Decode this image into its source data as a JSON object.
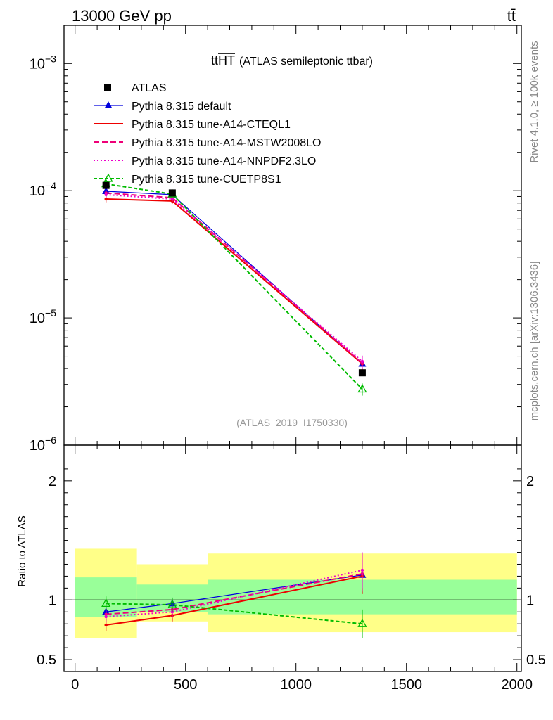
{
  "header": {
    "left": "13000 GeV pp",
    "right": "tt̄"
  },
  "side_labels": {
    "rivet": "Rivet 4.1.0, ≥ 100k events",
    "mcplots": "mcplots.cern.ch [arXiv:1306.3436]"
  },
  "colors": {
    "atlas": "#000000",
    "default": "#0000dd",
    "cteql1": "#ee0000",
    "mstw": "#ee0077",
    "nnpdf": "#ee00cc",
    "cuetp": "#00bb00",
    "band_outer": "#ffff88",
    "band_inner": "#99ff99",
    "ratio_line": "#000000"
  },
  "chart_data": [
    {
      "type": "line",
      "title_main": "tt",
      "title_overline": "HT",
      "title_suffix": "(ATLAS semileptonic ttbar)",
      "watermark": "(ATLAS_2019_I1750330)",
      "xlim": [
        -50,
        2020
      ],
      "ylim_log10": [
        -6,
        -2.7
      ],
      "y_ticks": [
        {
          "base": "10",
          "exp": "−3",
          "log": -3
        },
        {
          "base": "10",
          "exp": "−4",
          "log": -4
        },
        {
          "base": "10",
          "exp": "−5",
          "log": -5
        },
        {
          "base": "10",
          "exp": "−6",
          "log": -6
        }
      ],
      "data": {
        "name": "ATLAS",
        "x": [
          140,
          440,
          1300
        ],
        "y": [
          0.00011,
          9.6e-05,
          3.7e-06
        ]
      },
      "series": [
        {
          "name": "Pythia 8.315 default",
          "key": "default",
          "dash": "",
          "marker": "tri-filled",
          "x": [
            140,
            440,
            1300
          ],
          "y": [
            9.9e-05,
            9.3e-05,
            4.35e-06
          ],
          "err": [
            1e-05,
            6e-06,
            4e-07
          ]
        },
        {
          "name": "Pythia 8.315 tune-A14-CTEQL1",
          "key": "cteql1",
          "dash": "",
          "marker": "dot",
          "x": [
            140,
            440,
            1300
          ],
          "y": [
            8.6e-05,
            8.3e-05,
            4.35e-06
          ],
          "err": [
            5e-06,
            4e-06,
            5e-07
          ]
        },
        {
          "name": "Pythia 8.315 tune-A14-MSTW2008LO",
          "key": "mstw",
          "dash": "8,4",
          "marker": "dot",
          "x": [
            140,
            440,
            1300
          ],
          "y": [
            9.6e-05,
            8.8e-05,
            4.4e-06
          ],
          "err": [
            5e-06,
            4e-06,
            5e-07
          ]
        },
        {
          "name": "Pythia 8.315 tune-A14-NNPDF2.3LO",
          "key": "nnpdf",
          "dash": "2,3",
          "marker": "dot",
          "x": [
            140,
            440,
            1300
          ],
          "y": [
            9.3e-05,
            8.6e-05,
            4.55e-06
          ],
          "err": [
            5e-06,
            4e-06,
            5e-07
          ]
        },
        {
          "name": "Pythia 8.315 tune-CUETP8S1",
          "key": "cuetp",
          "dash": "5,3",
          "marker": "tri-open",
          "x": [
            140,
            440,
            1300
          ],
          "y": [
            0.000113,
            9.4e-05,
            2.75e-06
          ],
          "err": [
            6e-06,
            5e-06,
            3e-07
          ]
        }
      ]
    },
    {
      "type": "line",
      "ylabel": "Ratio to ATLAS",
      "xlim": [
        -50,
        2020
      ],
      "ylim": [
        0.4,
        2.3
      ],
      "y_ticks": [
        {
          "label": "2",
          "value": 2
        },
        {
          "label": "1",
          "value": 1
        },
        {
          "label": "0.5",
          "value": 0.5
        }
      ],
      "x_ticks": [
        {
          "label": "0",
          "value": 0
        },
        {
          "label": "500",
          "value": 500
        },
        {
          "label": "1000",
          "value": 1000
        },
        {
          "label": "1500",
          "value": 1500
        },
        {
          "label": "2000",
          "value": 2000
        }
      ],
      "bins": [
        {
          "lo": 0,
          "hi": 280,
          "inner": [
            0.86,
            1.19
          ],
          "outer": [
            0.68,
            1.43
          ]
        },
        {
          "lo": 280,
          "hi": 600,
          "inner": [
            0.9,
            1.13
          ],
          "outer": [
            0.82,
            1.3
          ]
        },
        {
          "lo": 600,
          "hi": 2000,
          "inner": [
            0.88,
            1.17
          ],
          "outer": [
            0.73,
            1.39
          ]
        }
      ],
      "series": [
        {
          "key": "default",
          "dash": "",
          "marker": "tri-filled",
          "x": [
            140,
            440,
            1300
          ],
          "y": [
            0.9,
            0.97,
            1.21
          ],
          "err": [
            0.05,
            0.05,
            0.12
          ]
        },
        {
          "key": "cteql1",
          "dash": "",
          "marker": "dot",
          "x": [
            140,
            440,
            1300
          ],
          "y": [
            0.79,
            0.87,
            1.2
          ],
          "err": [
            0.05,
            0.05,
            0.15
          ]
        },
        {
          "key": "mstw",
          "dash": "8,4",
          "marker": "dot",
          "x": [
            140,
            440,
            1300
          ],
          "y": [
            0.88,
            0.92,
            1.22
          ],
          "err": [
            0.05,
            0.05,
            0.15
          ]
        },
        {
          "key": "nnpdf",
          "dash": "2,3",
          "marker": "dot",
          "x": [
            140,
            440,
            1300
          ],
          "y": [
            0.86,
            0.9,
            1.25
          ],
          "err": [
            0.05,
            0.05,
            0.15
          ]
        },
        {
          "key": "cuetp",
          "dash": "5,3",
          "marker": "tri-open",
          "x": [
            140,
            440,
            1300
          ],
          "y": [
            0.97,
            0.96,
            0.8
          ],
          "err": [
            0.06,
            0.06,
            0.12
          ]
        }
      ]
    }
  ]
}
